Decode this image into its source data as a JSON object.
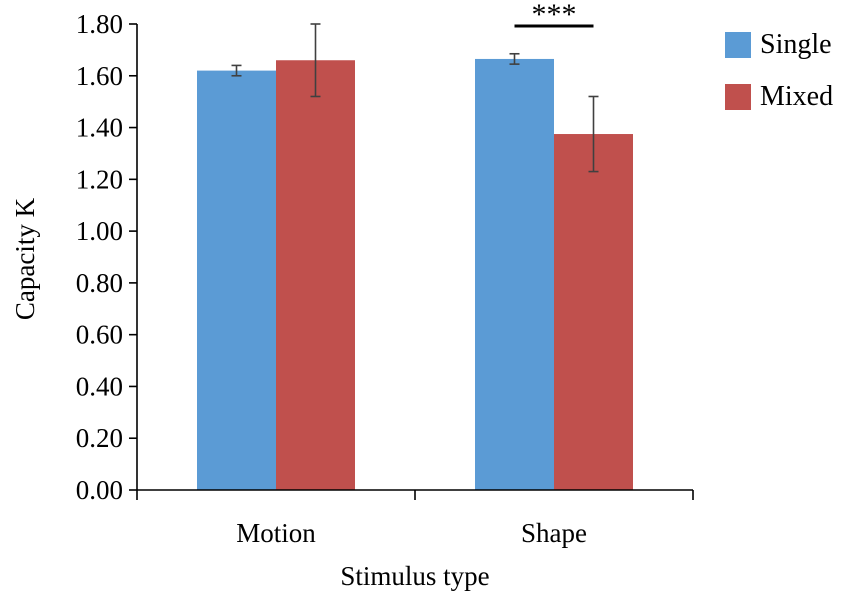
{
  "chart_data": {
    "type": "bar",
    "xlabel": "Stimulus type",
    "ylabel": "Capacity K",
    "ylim": [
      0,
      1.8
    ],
    "yticks": [
      "0.00",
      "0.20",
      "0.40",
      "0.60",
      "0.80",
      "1.00",
      "1.20",
      "1.40",
      "1.60",
      "1.80"
    ],
    "categories": [
      "Motion",
      "Shape"
    ],
    "series": [
      {
        "name": "Single",
        "color": "#5B9BD5",
        "values": [
          1.62,
          1.665
        ],
        "errors": [
          0.02,
          0.02
        ]
      },
      {
        "name": "Mixed",
        "color": "#C0504D",
        "values": [
          1.66,
          1.375
        ],
        "errors": [
          0.14,
          0.145
        ]
      }
    ],
    "annotations": [
      {
        "text": "***",
        "category": "Shape"
      }
    ],
    "legend": "right"
  }
}
